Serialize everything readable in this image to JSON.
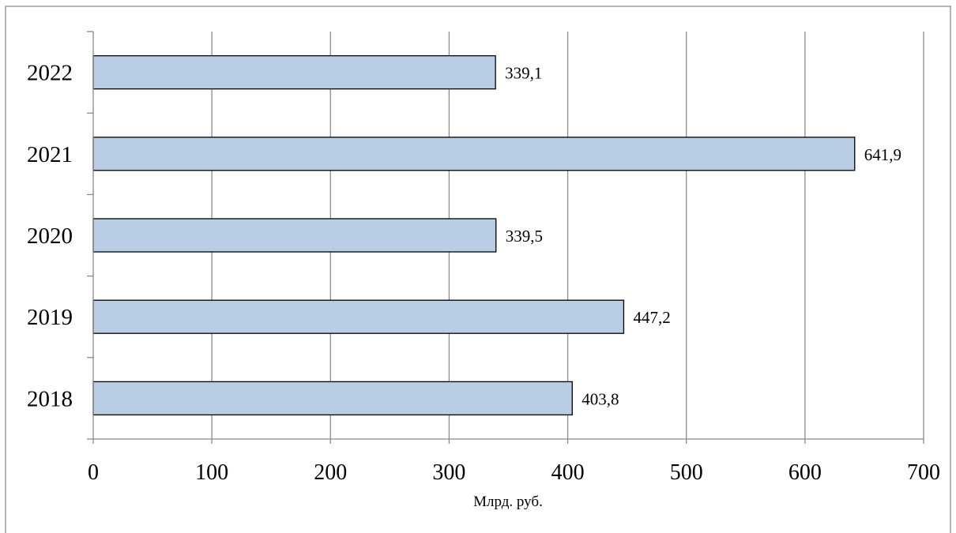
{
  "chart_data": {
    "type": "bar",
    "orientation": "horizontal",
    "categories": [
      "2018",
      "2019",
      "2020",
      "2021",
      "2022"
    ],
    "values": [
      403.8,
      447.2,
      339.5,
      641.9,
      339.1
    ],
    "value_labels": [
      "403,8",
      "447,2",
      "339,5",
      "641,9",
      "339,1"
    ],
    "title": "",
    "xlabel": "Млрд. руб.",
    "ylabel": "",
    "xlim": [
      0,
      700
    ],
    "x_ticks": [
      0,
      100,
      200,
      300,
      400,
      500,
      600,
      700
    ],
    "x_tick_labels": [
      "0",
      "100",
      "200",
      "300",
      "400",
      "500",
      "600",
      "700"
    ],
    "grid": "vertical",
    "legend": "none",
    "colors": {
      "bar_fill": "#b9cde5",
      "bar_stroke": "#000000",
      "grid": "#8c8c8c"
    }
  }
}
